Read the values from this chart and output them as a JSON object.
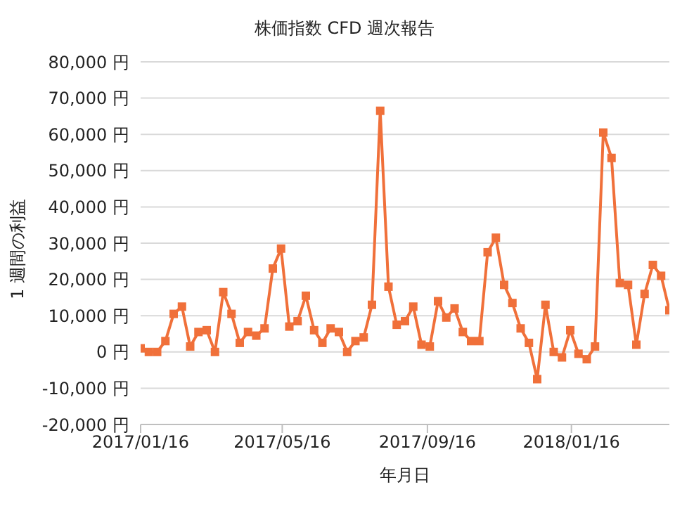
{
  "chart_data": {
    "type": "line",
    "title": "株価指数 CFD 週次報告",
    "xlabel": "年月日",
    "ylabel": "1 週間の利益",
    "x": [
      "2017-01-16",
      "2017-01-23",
      "2017-01-30",
      "2017-02-06",
      "2017-02-13",
      "2017-02-20",
      "2017-02-27",
      "2017-03-06",
      "2017-03-13",
      "2017-03-20",
      "2017-03-27",
      "2017-04-03",
      "2017-04-10",
      "2017-04-17",
      "2017-04-24",
      "2017-05-01",
      "2017-05-08",
      "2017-05-15",
      "2017-05-22",
      "2017-05-29",
      "2017-06-05",
      "2017-06-12",
      "2017-06-19",
      "2017-06-26",
      "2017-07-03",
      "2017-07-10",
      "2017-07-17",
      "2017-07-24",
      "2017-07-31",
      "2017-08-07",
      "2017-08-14",
      "2017-08-21",
      "2017-08-28",
      "2017-09-04",
      "2017-09-11",
      "2017-09-18",
      "2017-09-25",
      "2017-10-02",
      "2017-10-09",
      "2017-10-16",
      "2017-10-23",
      "2017-10-30",
      "2017-11-06",
      "2017-11-13",
      "2017-11-20",
      "2017-11-27",
      "2017-12-04",
      "2017-12-11",
      "2017-12-18",
      "2017-12-25",
      "2018-01-01",
      "2018-01-08",
      "2018-01-15",
      "2018-01-22",
      "2018-01-29",
      "2018-02-05",
      "2018-02-12",
      "2018-02-19",
      "2018-02-26",
      "2018-03-05",
      "2018-03-12",
      "2018-03-19",
      "2018-03-26",
      "2018-04-02",
      "2018-04-09"
    ],
    "series": [
      {
        "color": "#f0703a",
        "values": [
          1000,
          0,
          0,
          3000,
          10500,
          12500,
          1500,
          5500,
          6000,
          0,
          16500,
          10500,
          2500,
          5500,
          4500,
          6500,
          23000,
          28500,
          7000,
          8500,
          15500,
          6000,
          2500,
          6500,
          5500,
          0,
          3000,
          4000,
          13000,
          66500,
          18000,
          7500,
          8500,
          12500,
          2000,
          1500,
          14000,
          9500,
          12000,
          5500,
          3000,
          3000,
          27500,
          31500,
          18500,
          13500,
          6500,
          2500,
          -7500,
          13000,
          0,
          -1500,
          6000,
          -500,
          -2000,
          1500,
          60500,
          53500,
          19000,
          18500,
          2000,
          16000,
          24000,
          21000,
          11500
        ]
      }
    ],
    "xlim": [
      "2017-01-16",
      "2018-04-09"
    ],
    "xticks": [
      {
        "value": "2017-01-16",
        "label": "2017/01/16"
      },
      {
        "value": "2017-05-16",
        "label": "2017/05/16"
      },
      {
        "value": "2017-09-16",
        "label": "2017/09/16"
      },
      {
        "value": "2018-01-16",
        "label": "2018/01/16"
      }
    ],
    "ylim": [
      -20000,
      80000
    ],
    "yticks": [
      {
        "value": -20000,
        "label": "-20,000 円"
      },
      {
        "value": -10000,
        "label": "-10,000 円"
      },
      {
        "value": 0,
        "label": "0 円"
      },
      {
        "value": 10000,
        "label": "10,000 円"
      },
      {
        "value": 20000,
        "label": "20,000 円"
      },
      {
        "value": 30000,
        "label": "30,000 円"
      },
      {
        "value": 40000,
        "label": "40,000 円"
      },
      {
        "value": 50000,
        "label": "50,000 円"
      },
      {
        "value": 60000,
        "label": "60,000 円"
      },
      {
        "value": 70000,
        "label": "70,000 円"
      },
      {
        "value": 80000,
        "label": "80,000 円"
      }
    ],
    "grid": "y",
    "marker": "square",
    "line_style": "solid",
    "legend": false
  }
}
